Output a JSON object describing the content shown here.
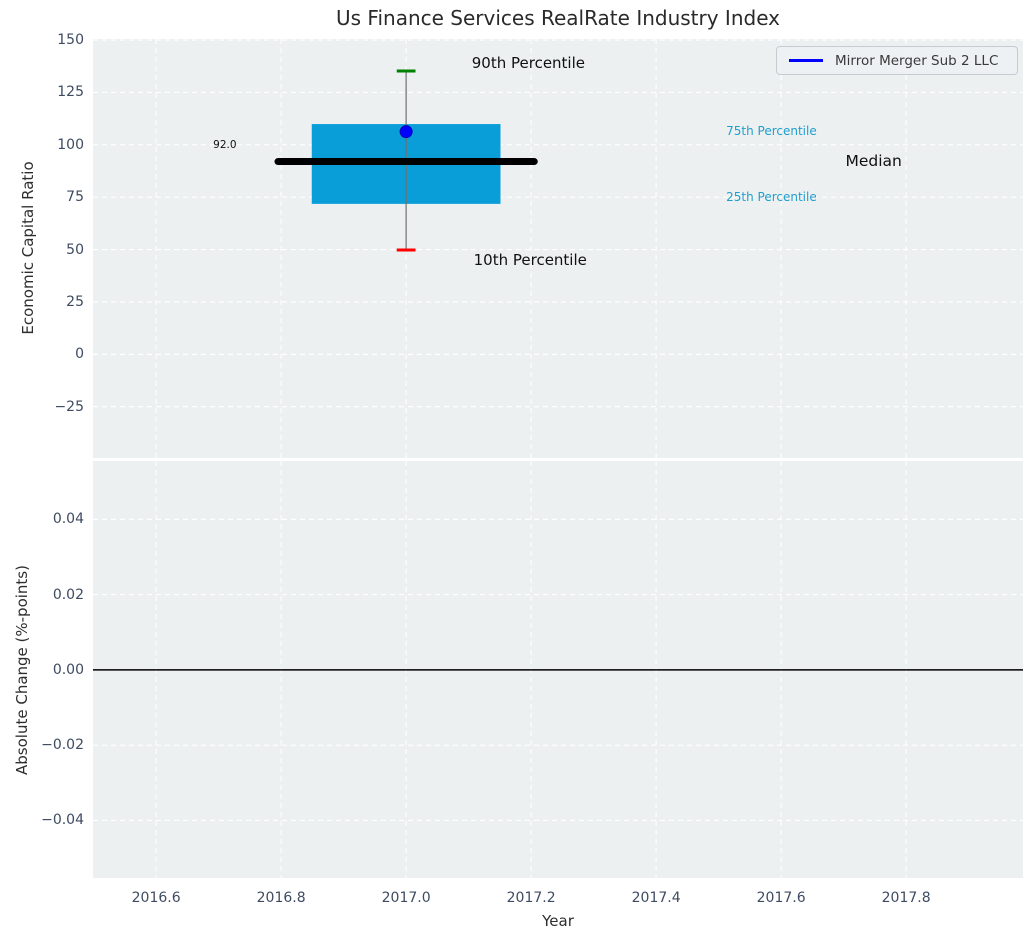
{
  "figure": {
    "title": "Us Finance Services RealRate Industry Index"
  },
  "legend": {
    "label": "Mirror Merger Sub 2 LLC",
    "line_color": "#0000ff",
    "position": "upper-right"
  },
  "x_axis": {
    "label": "Year",
    "lim": [
      2016.499,
      2017.987
    ],
    "ticks": [
      {
        "v": 2016.6,
        "label": "2016.6"
      },
      {
        "v": 2016.8,
        "label": "2016.8"
      },
      {
        "v": 2017.0,
        "label": "2017.0"
      },
      {
        "v": 2017.2,
        "label": "2017.2"
      },
      {
        "v": 2017.4,
        "label": "2017.4"
      },
      {
        "v": 2017.6,
        "label": "2017.6"
      },
      {
        "v": 2017.8,
        "label": "2017.8"
      }
    ]
  },
  "chart_data": [
    {
      "type": "boxplot",
      "title": "Us Finance Services RealRate Industry Index",
      "ylabel": "Economic Capital Ratio",
      "ylim": [
        -49.5,
        150.5
      ],
      "grid": "white-dashed",
      "yticks": [
        {
          "v": 150,
          "label": "150"
        },
        {
          "v": 125,
          "label": "125"
        },
        {
          "v": 100,
          "label": "100"
        },
        {
          "v": 75,
          "label": "75"
        },
        {
          "v": 50,
          "label": "50"
        },
        {
          "v": 25,
          "label": "25"
        },
        {
          "v": 0,
          "label": "0"
        },
        {
          "v": -25,
          "label": "−25"
        }
      ],
      "series_name": "Mirror Merger Sub 2 LLC",
      "box": {
        "x": 2017.0,
        "p10": 49.8,
        "p25": 71.8,
        "median": 92.0,
        "p75": 109.9,
        "p90": 135.2,
        "company_value": 106.3,
        "median_label": "92.0",
        "box_halfwidth": 0.151,
        "median_line_halfwidth": 0.205,
        "cap_halfwidth": 0.015,
        "box_color": "#0a9ed9",
        "median_color": "#000000",
        "whisker_color": "#707070",
        "cap_top_color": "#008000",
        "cap_bottom_color": "#ff0000",
        "marker_color": "#0000ff"
      },
      "annotations": [
        {
          "text": "90th Percentile",
          "x": 2017.105,
          "y": 139.0,
          "color": "#111111",
          "size": 15,
          "anchor": "start"
        },
        {
          "text": "10th Percentile",
          "x": 2017.108,
          "y": 45.0,
          "color": "#111111",
          "size": 15,
          "anchor": "start"
        },
        {
          "text": "75th Percentile",
          "x": 2017.512,
          "y": 106.5,
          "color": "#1f9fce",
          "size": 12,
          "anchor": "start"
        },
        {
          "text": "25th Percentile",
          "x": 2017.512,
          "y": 75.3,
          "color": "#1f9fce",
          "size": 12,
          "anchor": "start"
        },
        {
          "text": "Median",
          "x": 2017.703,
          "y": 92.2,
          "color": "#111111",
          "size": 15.5,
          "anchor": "start"
        },
        {
          "text": "92.0",
          "x": 2016.71,
          "y": 99.9,
          "color": "#111111",
          "size": 10.5,
          "anchor": "middle"
        }
      ]
    },
    {
      "type": "line",
      "ylabel": "Absolute Change (%-points)",
      "ylim": [
        -0.0553,
        0.0555
      ],
      "grid": "white-dashed",
      "yticks": [
        {
          "v": 0.04,
          "label": "0.04"
        },
        {
          "v": 0.02,
          "label": "0.02"
        },
        {
          "v": 0.0,
          "label": "0.00"
        },
        {
          "v": -0.02,
          "label": "−0.02"
        },
        {
          "v": -0.04,
          "label": "−0.04"
        }
      ],
      "zero_line": 0.0,
      "series": [
        {
          "name": "Mirror Merger Sub 2 LLC",
          "x": [],
          "values": []
        }
      ]
    }
  ],
  "colors": {
    "axes_background": "#ecf0f1",
    "grid": "#ffffff",
    "tick_label": "#3e4b61",
    "zero_line": "#000000"
  }
}
